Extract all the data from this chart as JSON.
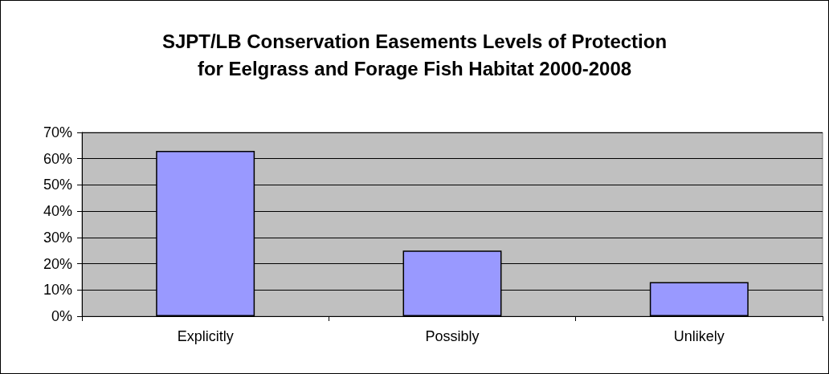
{
  "chart_data": {
    "type": "bar",
    "title": "SJPT/LB Conservation Easements Levels of Protection\nfor Eelgrass and Forage Fish Habitat 2000-2008",
    "categories": [
      "Explicitly",
      "Possibly",
      "Unlikely"
    ],
    "values": [
      63,
      25,
      13
    ],
    "color": "#9999ff",
    "ylim": [
      0,
      70
    ],
    "yticks": [
      {
        "value": 0,
        "label": "0%"
      },
      {
        "value": 10,
        "label": "10%"
      },
      {
        "value": 20,
        "label": "20%"
      },
      {
        "value": 30,
        "label": "30%"
      },
      {
        "value": 40,
        "label": "40%"
      },
      {
        "value": 50,
        "label": "50%"
      },
      {
        "value": 60,
        "label": "60%"
      },
      {
        "value": 70,
        "label": "70%"
      }
    ],
    "grid": "y"
  }
}
